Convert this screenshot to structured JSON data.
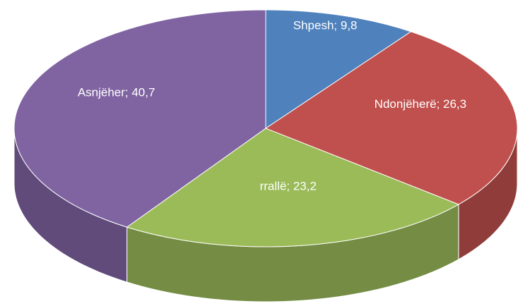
{
  "chart_data": {
    "type": "pie3d",
    "values": [
      9.8,
      26.3,
      23.2,
      40.7
    ],
    "value_labels": [
      "Shpesh; 9,8",
      "Ndonjëherë; 26,3",
      "rrallë; 23,2",
      "Asnjëher; 40,7"
    ],
    "colors": [
      "#4f81bd",
      "#c0504d",
      "#9bbb59",
      "#8064a2"
    ]
  }
}
